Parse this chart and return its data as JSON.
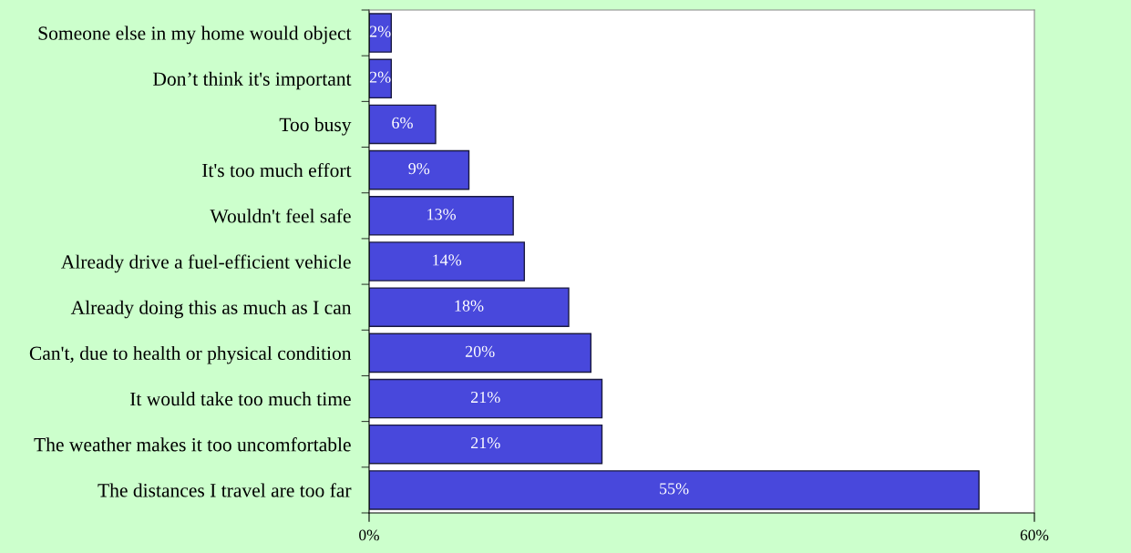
{
  "chart_data": {
    "type": "bar",
    "orientation": "horizontal",
    "categories": [
      "Someone else in my home would object",
      "Don’t think it's important",
      "Too busy",
      "It's too much effort",
      "Wouldn't feel safe",
      "Already drive a fuel-efficient vehicle",
      "Already doing this as much as I can",
      "Can't, due to health or physical condition",
      "It would take too much time",
      "The weather makes it too uncomfortable",
      "The distances I travel are too far"
    ],
    "values": [
      2,
      2,
      6,
      9,
      13,
      14,
      18,
      20,
      21,
      21,
      55
    ],
    "value_labels": [
      "2%",
      "2%",
      "6%",
      "9%",
      "13%",
      "14%",
      "18%",
      "20%",
      "21%",
      "21%",
      "55%"
    ],
    "color": "#4848dc",
    "xlim": [
      0,
      60
    ],
    "xticks": [
      {
        "value": 0,
        "label": "0%"
      },
      {
        "value": 60,
        "label": "60%"
      }
    ]
  }
}
